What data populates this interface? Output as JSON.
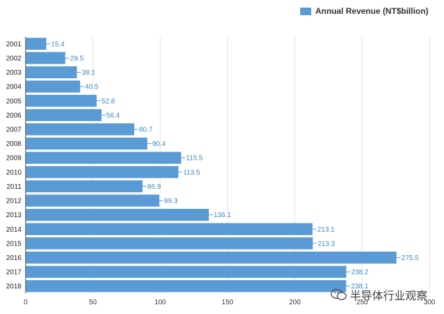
{
  "chart_data": {
    "type": "bar",
    "orientation": "horizontal",
    "title": "",
    "xlabel": "",
    "ylabel": "",
    "xlim": [
      0,
      300
    ],
    "x_ticks": [
      0,
      50,
      100,
      150,
      200,
      250,
      300
    ],
    "grid": true,
    "legend": "top-right",
    "categories": [
      "2001",
      "2002",
      "2003",
      "2004",
      "2005",
      "2006",
      "2007",
      "2008",
      "2009",
      "2010",
      "2011",
      "2012",
      "2013",
      "2014",
      "2015",
      "2016",
      "2017",
      "2018"
    ],
    "series": [
      {
        "name": "Annual Revenue (NT$billion)",
        "color": "#5b9bd5",
        "values": [
          15.4,
          29.5,
          38.1,
          40.5,
          52.8,
          56.4,
          80.7,
          90.4,
          115.5,
          113.5,
          86.9,
          99.3,
          136.1,
          213.1,
          213.3,
          275.5,
          238.2,
          238.1
        ],
        "value_labels": [
          "15.4",
          "29.5",
          "38.1",
          "40.5",
          "52.8",
          "56.4",
          "80.7",
          "90.4",
          "115.5",
          "113.5",
          "86.9",
          "99.3",
          "136.1",
          "213.1",
          "213.3",
          "275.5",
          "238.2",
          "238.1"
        ]
      }
    ]
  },
  "legend": {
    "label": "Annual Revenue (NT$billion)"
  },
  "watermark": {
    "text": "半导体行业观察",
    "icon": "wechat-icon"
  }
}
